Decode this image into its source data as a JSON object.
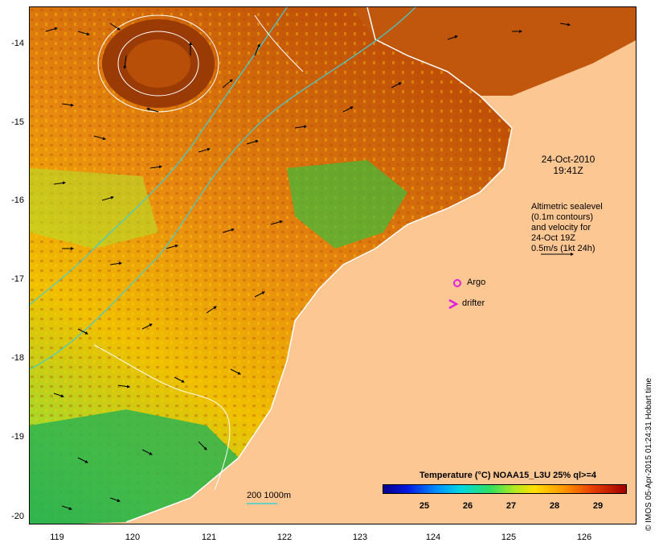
{
  "map": {
    "y_ticks": [
      "-14",
      "-15",
      "-16",
      "-17",
      "-18",
      "-19",
      "-20"
    ],
    "x_ticks": [
      "119",
      "120",
      "121",
      "122",
      "123",
      "124",
      "125",
      "126"
    ],
    "date_line1": "24-Oct-2010",
    "date_line2": "19:41Z",
    "info_lines": [
      "Altimetric sealevel",
      "(0.1m contours)",
      "and velocity for",
      "24-Oct 19Z",
      "0.5m/s (1kt 24h)"
    ],
    "argo_label": "Argo",
    "drifter_label": "drifter",
    "bathy_label": "200  1000m",
    "colorbar_title": "Temperature (°C) NOAA15_L3U 25% ql>=4",
    "colorbar_ticks": [
      "25",
      "26",
      "27",
      "28",
      "29"
    ],
    "credit": "© IMOS 05-Apr-2015 01:24:31 Hobart time",
    "colors": {
      "land": "#fdc793",
      "cool": "#22b24c",
      "warm": "#e89a10",
      "hot": "#a02a00",
      "contour_200m": "#40d0d0",
      "sealevel_contour": "#ffffff",
      "argo_marker": "#e020e0",
      "drifter_marker": "#e020e0"
    }
  }
}
